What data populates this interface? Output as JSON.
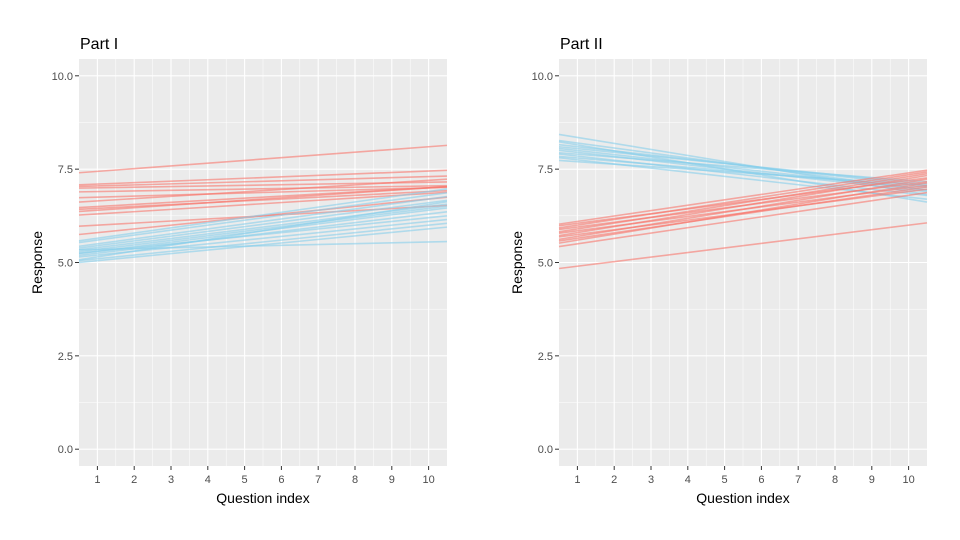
{
  "colors": {
    "panel_bg": "#EBEBEB",
    "grid_major": "#FFFFFF",
    "red": "#F8766D",
    "blue": "#87CEEB"
  },
  "chart_data": [
    {
      "type": "line",
      "title": "Part I",
      "xlabel": "Question index",
      "ylabel": "Response",
      "xticks": [
        1,
        2,
        3,
        4,
        5,
        6,
        7,
        8,
        9,
        10
      ],
      "yticks": [
        0,
        2.5,
        5,
        7.5,
        10
      ],
      "ytick_labels": [
        "0.0",
        "2.5",
        "5.0",
        "7.5",
        "10.0"
      ],
      "xlim": [
        0.5,
        10.5
      ],
      "ylim": [
        -0.45,
        10.45
      ],
      "grid": true,
      "legend": "none",
      "series": [
        {
          "group": "red",
          "y_at_x1": 7.44,
          "y_at_x10": 8.1
        },
        {
          "group": "red",
          "y_at_x1": 7.1,
          "y_at_x10": 7.45
        },
        {
          "group": "red",
          "y_at_x1": 7.05,
          "y_at_x10": 7.3
        },
        {
          "group": "red",
          "y_at_x1": 7.0,
          "y_at_x10": 7.15
        },
        {
          "group": "red",
          "y_at_x1": 6.9,
          "y_at_x10": 7.05
        },
        {
          "group": "red",
          "y_at_x1": 6.75,
          "y_at_x10": 7.0
        },
        {
          "group": "red",
          "y_at_x1": 6.65,
          "y_at_x10": 7.2
        },
        {
          "group": "red",
          "y_at_x1": 6.5,
          "y_at_x10": 7.0
        },
        {
          "group": "red",
          "y_at_x1": 6.45,
          "y_at_x10": 6.9
        },
        {
          "group": "red",
          "y_at_x1": 6.4,
          "y_at_x10": 7.0
        },
        {
          "group": "red",
          "y_at_x1": 6.3,
          "y_at_x10": 6.85
        },
        {
          "group": "red",
          "y_at_x1": 6.0,
          "y_at_x10": 6.5
        },
        {
          "group": "red",
          "y_at_x1": 5.8,
          "y_at_x10": 6.7
        },
        {
          "group": "blue",
          "y_at_x1": 5.65,
          "y_at_x10": 6.9
        },
        {
          "group": "blue",
          "y_at_x1": 5.6,
          "y_at_x10": 6.8
        },
        {
          "group": "blue",
          "y_at_x1": 5.5,
          "y_at_x10": 6.7
        },
        {
          "group": "blue",
          "y_at_x1": 5.45,
          "y_at_x10": 6.6
        },
        {
          "group": "blue",
          "y_at_x1": 5.4,
          "y_at_x10": 6.5
        },
        {
          "group": "blue",
          "y_at_x1": 5.35,
          "y_at_x10": 6.45
        },
        {
          "group": "blue",
          "y_at_x1": 5.3,
          "y_at_x10": 6.4
        },
        {
          "group": "blue",
          "y_at_x1": 5.3,
          "y_at_x10": 6.2
        },
        {
          "group": "blue",
          "y_at_x1": 5.25,
          "y_at_x10": 6.3
        },
        {
          "group": "blue",
          "y_at_x1": 5.2,
          "y_at_x10": 6.1
        },
        {
          "group": "blue",
          "y_at_x1": 5.15,
          "y_at_x10": 6.55
        },
        {
          "group": "blue",
          "y_at_x1": 5.1,
          "y_at_x10": 6.0
        },
        {
          "group": "blue",
          "y_at_x1": 5.05,
          "y_at_x10": 5.9
        },
        {
          "group": "blue",
          "y_at_x1": 5.35,
          "y_at_x10": 5.55
        }
      ]
    },
    {
      "type": "line",
      "title": "Part II",
      "xlabel": "Question index",
      "ylabel": "Response",
      "xticks": [
        1,
        2,
        3,
        4,
        5,
        6,
        7,
        8,
        9,
        10
      ],
      "yticks": [
        0,
        2.5,
        5,
        7.5,
        10
      ],
      "ytick_labels": [
        "0.0",
        "2.5",
        "5.0",
        "7.5",
        "10.0"
      ],
      "xlim": [
        0.5,
        10.5
      ],
      "ylim": [
        -0.45,
        10.45
      ],
      "grid": true,
      "legend": "none",
      "series": [
        {
          "group": "blue",
          "y_at_x1": 8.35,
          "y_at_x10": 6.9
        },
        {
          "group": "blue",
          "y_at_x1": 8.2,
          "y_at_x10": 7.0
        },
        {
          "group": "blue",
          "y_at_x1": 8.15,
          "y_at_x10": 6.7
        },
        {
          "group": "blue",
          "y_at_x1": 8.1,
          "y_at_x10": 7.1
        },
        {
          "group": "blue",
          "y_at_x1": 8.05,
          "y_at_x10": 7.15
        },
        {
          "group": "blue",
          "y_at_x1": 8.0,
          "y_at_x10": 7.0
        },
        {
          "group": "blue",
          "y_at_x1": 7.95,
          "y_at_x10": 6.95
        },
        {
          "group": "blue",
          "y_at_x1": 7.9,
          "y_at_x10": 7.2
        },
        {
          "group": "blue",
          "y_at_x1": 7.85,
          "y_at_x10": 6.85
        },
        {
          "group": "blue",
          "y_at_x1": 7.8,
          "y_at_x10": 7.05
        },
        {
          "group": "blue",
          "y_at_x1": 7.75,
          "y_at_x10": 6.75
        },
        {
          "group": "blue",
          "y_at_x1": 7.7,
          "y_at_x10": 7.1
        },
        {
          "group": "red",
          "y_at_x1": 6.1,
          "y_at_x10": 7.4
        },
        {
          "group": "red",
          "y_at_x1": 6.05,
          "y_at_x10": 7.2
        },
        {
          "group": "red",
          "y_at_x1": 6.0,
          "y_at_x10": 7.35
        },
        {
          "group": "red",
          "y_at_x1": 5.95,
          "y_at_x10": 7.1
        },
        {
          "group": "red",
          "y_at_x1": 5.9,
          "y_at_x10": 7.3
        },
        {
          "group": "red",
          "y_at_x1": 5.85,
          "y_at_x10": 7.0
        },
        {
          "group": "red",
          "y_at_x1": 5.8,
          "y_at_x10": 7.25
        },
        {
          "group": "red",
          "y_at_x1": 5.75,
          "y_at_x10": 6.9
        },
        {
          "group": "red",
          "y_at_x1": 5.7,
          "y_at_x10": 7.15
        },
        {
          "group": "red",
          "y_at_x1": 5.65,
          "y_at_x10": 6.95
        },
        {
          "group": "red",
          "y_at_x1": 5.6,
          "y_at_x10": 7.05
        },
        {
          "group": "red",
          "y_at_x1": 5.5,
          "y_at_x10": 6.8
        },
        {
          "group": "red",
          "y_at_x1": 4.9,
          "y_at_x10": 6.0
        }
      ]
    }
  ]
}
